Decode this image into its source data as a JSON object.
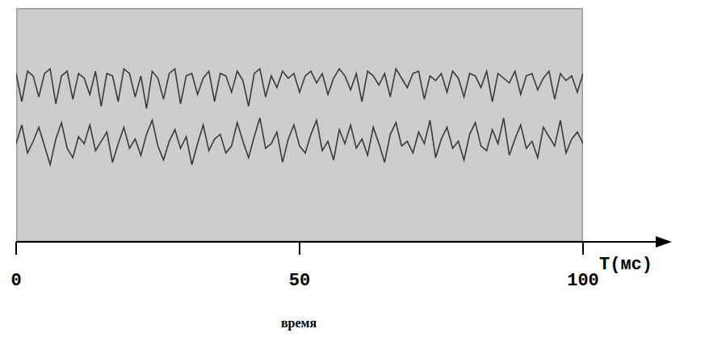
{
  "chart_data": {
    "type": "line",
    "xlabel": "T(мс)",
    "caption": "время",
    "x": [
      0,
      1,
      2,
      3,
      4,
      5,
      6,
      7,
      8,
      9,
      10,
      11,
      12,
      13,
      14,
      15,
      16,
      17,
      18,
      19,
      20,
      21,
      22,
      23,
      24,
      25,
      26,
      27,
      28,
      29,
      30,
      31,
      32,
      33,
      34,
      35,
      36,
      37,
      38,
      39,
      40,
      41,
      42,
      43,
      44,
      45,
      46,
      47,
      48,
      49,
      50,
      51,
      52,
      53,
      54,
      55,
      56,
      57,
      58,
      59,
      60,
      61,
      62,
      63,
      64,
      65,
      66,
      67,
      68,
      69,
      70,
      71,
      72,
      73,
      74,
      75,
      76,
      77,
      78,
      79,
      80,
      81,
      82,
      83,
      84,
      85,
      86,
      87,
      88,
      89,
      90,
      91,
      92,
      93,
      94,
      95,
      96,
      97,
      98,
      99,
      100
    ],
    "series": [
      {
        "color": "#3a3a3a",
        "values": [
          72,
          60,
          73,
          71,
          62,
          72,
          74,
          59,
          71,
          73,
          61,
          72,
          70,
          63,
          73,
          58,
          72,
          71,
          60,
          74,
          72,
          62,
          71,
          57,
          73,
          70,
          61,
          72,
          74,
          59,
          71,
          72,
          63,
          70,
          73,
          60,
          72,
          71,
          64,
          73,
          69,
          58,
          72,
          74,
          62,
          71,
          66,
          73,
          70,
          72,
          64,
          71,
          73,
          68,
          72,
          63,
          70,
          74,
          71,
          65,
          72,
          60,
          73,
          71,
          67,
          72,
          62,
          74,
          70,
          66,
          72,
          73,
          61,
          71,
          69,
          72,
          64,
          73,
          70,
          62,
          72,
          71,
          66,
          73,
          60,
          72,
          70,
          68,
          73,
          63,
          71,
          72,
          65,
          70,
          73,
          61,
          72,
          69,
          71,
          64,
          72
        ]
      },
      {
        "color": "#3a3a3a",
        "values": [
          42,
          50,
          38,
          43,
          49,
          41,
          33,
          44,
          51,
          40,
          36,
          45,
          42,
          50,
          39,
          43,
          47,
          34,
          42,
          49,
          40,
          44,
          37,
          46,
          52,
          41,
          35,
          43,
          48,
          40,
          45,
          33,
          42,
          50,
          39,
          44,
          46,
          38,
          41,
          51,
          43,
          36,
          45,
          53,
          40,
          42,
          47,
          34,
          44,
          50,
          41,
          38,
          46,
          52,
          39,
          43,
          35,
          48,
          42,
          50,
          40,
          44,
          37,
          49,
          42,
          34,
          46,
          51,
          41,
          43,
          38,
          47,
          42,
          52,
          36,
          44,
          49,
          40,
          43,
          35,
          46,
          51,
          41,
          39,
          48,
          42,
          53,
          37,
          44,
          50,
          40,
          43,
          36,
          49,
          45,
          41,
          52,
          38,
          44,
          47,
          42
        ]
      }
    ],
    "xlim": [
      0,
      100
    ],
    "xticks": [
      0,
      50,
      100
    ],
    "ylim": [
      0,
      100
    ],
    "grid": false,
    "tick_labels": "x"
  }
}
